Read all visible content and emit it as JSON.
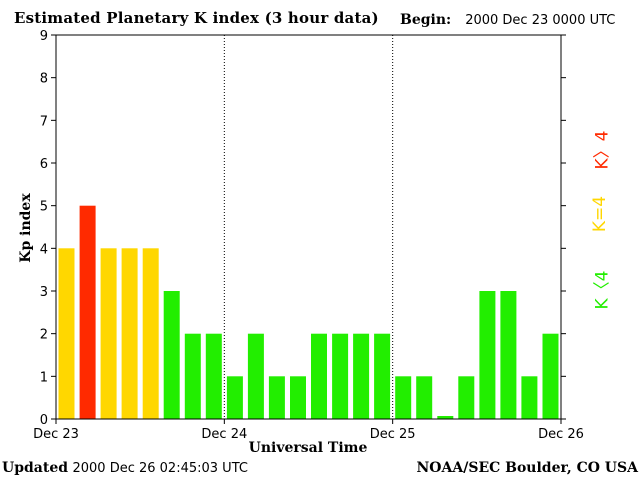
{
  "header": {
    "title": "Estimated Planetary K index (3 hour data)",
    "begin_label": "Begin:",
    "begin_value": "2000 Dec 23 0000 UTC"
  },
  "footer": {
    "updated_label": "Updated",
    "updated_value": "2000 Dec 26 02:45:03 UTC",
    "org": "NOAA/SEC Boulder, CO USA"
  },
  "legend": {
    "high": "K〉4",
    "equal": "K=4",
    "low": "K〈4"
  },
  "colors": {
    "low": "#22ee00",
    "equal": "#ffd700",
    "high": "#ff2a00"
  },
  "chart_data": {
    "type": "bar",
    "xlabel": "Universal Time",
    "ylabel": "Kp index",
    "ylim": [
      0,
      9
    ],
    "yticks": [
      "0",
      "1",
      "2",
      "3",
      "4",
      "5",
      "6",
      "7",
      "8",
      "9"
    ],
    "xticks": [
      "Dec 23",
      "Dec 24",
      "Dec 25",
      "Dec 26"
    ],
    "day_separators": "dotted vertical lines at Dec 24 and Dec 25",
    "grid": false,
    "values": [
      4,
      5,
      4,
      4,
      4,
      3,
      2,
      2,
      1,
      2,
      1,
      1,
      2,
      2,
      2,
      2,
      1,
      1,
      0.07,
      1,
      3,
      3,
      1,
      2
    ]
  }
}
